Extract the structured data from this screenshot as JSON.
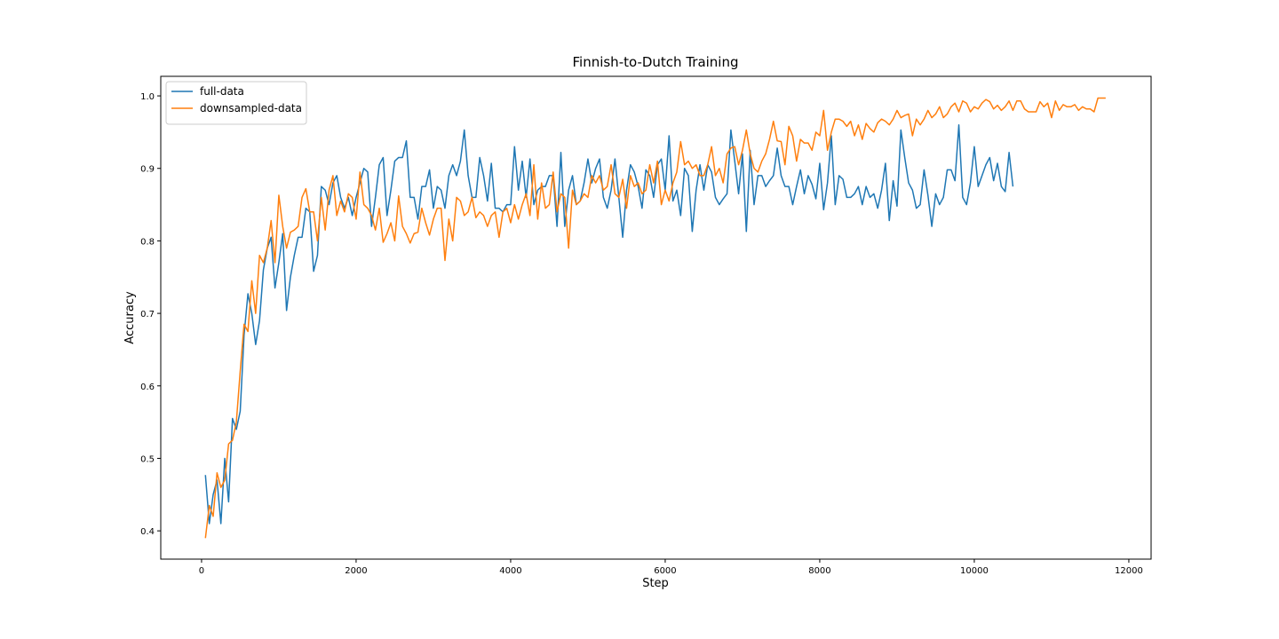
{
  "chart_data": {
    "type": "line",
    "title": "Finnish-to-Dutch Training",
    "x_label": "Step",
    "y_label": "Accuracy",
    "x": [
      50,
      100,
      150,
      200,
      250,
      300,
      350,
      400,
      450,
      500,
      550,
      600,
      650,
      700,
      750,
      800,
      850,
      900,
      950,
      1000,
      1050,
      1100,
      1150,
      1200,
      1250,
      1300,
      1350,
      1400,
      1450,
      1500,
      1550,
      1600,
      1650,
      1700,
      1750,
      1800,
      1850,
      1900,
      1950,
      2000,
      2050,
      2100,
      2150,
      2200,
      2250,
      2300,
      2350,
      2400,
      2450,
      2500,
      2550,
      2600,
      2650,
      2700,
      2750,
      2800,
      2850,
      2900,
      2950,
      3000,
      3050,
      3100,
      3150,
      3200,
      3250,
      3300,
      3350,
      3400,
      3450,
      3500,
      3550,
      3600,
      3650,
      3700,
      3750,
      3800,
      3850,
      3900,
      3950,
      4000,
      4050,
      4100,
      4150,
      4200,
      4250,
      4300,
      4350,
      4400,
      4450,
      4500,
      4550,
      4600,
      4650,
      4700,
      4750,
      4800,
      4850,
      4900,
      4950,
      5000,
      5050,
      5100,
      5150,
      5200,
      5250,
      5300,
      5350,
      5400,
      5450,
      5500,
      5550,
      5600,
      5650,
      5700,
      5750,
      5800,
      5850,
      5900,
      5950,
      6000,
      6050,
      6100,
      6150,
      6200,
      6250,
      6300,
      6350,
      6400,
      6450,
      6500,
      6550,
      6600,
      6650,
      6700,
      6750,
      6800,
      6850,
      6900,
      6950,
      7000,
      7050,
      7100,
      7150,
      7200,
      7250,
      7300,
      7350,
      7400,
      7450,
      7500,
      7550,
      7600,
      7650,
      7700,
      7750,
      7800,
      7850,
      7900,
      7950,
      8000,
      8050,
      8100,
      8150,
      8200,
      8250,
      8300,
      8350,
      8400,
      8450,
      8500,
      8550,
      8600,
      8650,
      8700,
      8750,
      8800,
      8850,
      8900,
      8950,
      9000,
      9050,
      9100,
      9150,
      9200,
      9250,
      9300,
      9350,
      9400,
      9450,
      9500,
      9550,
      9600,
      9650,
      9700,
      9750,
      9800,
      9850,
      9900,
      9950,
      10000,
      10050,
      10100,
      10150,
      10200,
      10250,
      10300,
      10350,
      10400,
      10450,
      10500,
      10550,
      10600,
      10650,
      10700,
      10750,
      10800,
      10850,
      10900,
      10950,
      11000,
      11050,
      11100,
      11150,
      11200,
      11250,
      11300,
      11350,
      11400,
      11450,
      11500,
      11550,
      11600,
      11650,
      11700
    ],
    "series": [
      {
        "name": "full-data",
        "color": "#1f77b4",
        "values": [
          0.477,
          0.41,
          0.45,
          0.47,
          0.41,
          0.5,
          0.44,
          0.555,
          0.54,
          0.565,
          0.67,
          0.727,
          0.7,
          0.657,
          0.69,
          0.76,
          0.79,
          0.805,
          0.735,
          0.77,
          0.81,
          0.704,
          0.75,
          0.78,
          0.805,
          0.805,
          0.845,
          0.84,
          0.758,
          0.78,
          0.875,
          0.87,
          0.85,
          0.88,
          0.89,
          0.86,
          0.845,
          0.86,
          0.835,
          0.86,
          0.88,
          0.9,
          0.895,
          0.82,
          0.86,
          0.905,
          0.915,
          0.835,
          0.87,
          0.91,
          0.915,
          0.915,
          0.938,
          0.86,
          0.86,
          0.83,
          0.875,
          0.875,
          0.898,
          0.845,
          0.875,
          0.87,
          0.845,
          0.89,
          0.905,
          0.89,
          0.91,
          0.953,
          0.89,
          0.86,
          0.86,
          0.915,
          0.89,
          0.855,
          0.907,
          0.845,
          0.845,
          0.84,
          0.85,
          0.85,
          0.93,
          0.87,
          0.91,
          0.86,
          0.913,
          0.85,
          0.87,
          0.875,
          0.875,
          0.89,
          0.89,
          0.82,
          0.922,
          0.82,
          0.87,
          0.89,
          0.85,
          0.855,
          0.88,
          0.913,
          0.88,
          0.9,
          0.913,
          0.86,
          0.845,
          0.87,
          0.913,
          0.86,
          0.805,
          0.87,
          0.905,
          0.895,
          0.875,
          0.845,
          0.898,
          0.89,
          0.86,
          0.905,
          0.913,
          0.87,
          0.945,
          0.855,
          0.87,
          0.835,
          0.9,
          0.89,
          0.813,
          0.87,
          0.905,
          0.87,
          0.905,
          0.895,
          0.86,
          0.85,
          0.858,
          0.865,
          0.953,
          0.91,
          0.865,
          0.92,
          0.813,
          0.925,
          0.85,
          0.89,
          0.89,
          0.875,
          0.883,
          0.89,
          0.928,
          0.89,
          0.875,
          0.875,
          0.85,
          0.875,
          0.898,
          0.865,
          0.89,
          0.878,
          0.858,
          0.907,
          0.843,
          0.88,
          0.945,
          0.85,
          0.89,
          0.885,
          0.86,
          0.86,
          0.865,
          0.875,
          0.85,
          0.875,
          0.86,
          0.865,
          0.845,
          0.87,
          0.907,
          0.828,
          0.883,
          0.848,
          0.953,
          0.915,
          0.88,
          0.87,
          0.845,
          0.85,
          0.898,
          0.863,
          0.82,
          0.865,
          0.85,
          0.86,
          0.898,
          0.898,
          0.883,
          0.96,
          0.86,
          0.85,
          0.88,
          0.93,
          0.875,
          0.89,
          0.905,
          0.915,
          0.883,
          0.907,
          0.875,
          0.868,
          0.922,
          0.875,
          null,
          null,
          null,
          null,
          null,
          null,
          null,
          null,
          null,
          null,
          null,
          null,
          null,
          null,
          null,
          null,
          null,
          null,
          null,
          null,
          null,
          null,
          null,
          null
        ]
      },
      {
        "name": "downsampled-data",
        "color": "#ff7f0e",
        "values": [
          0.39,
          0.435,
          0.42,
          0.48,
          0.46,
          0.47,
          0.52,
          0.525,
          0.55,
          0.62,
          0.685,
          0.675,
          0.745,
          0.7,
          0.78,
          0.77,
          0.79,
          0.828,
          0.77,
          0.863,
          0.82,
          0.79,
          0.812,
          0.815,
          0.82,
          0.86,
          0.872,
          0.84,
          0.84,
          0.8,
          0.86,
          0.815,
          0.87,
          0.89,
          0.835,
          0.855,
          0.84,
          0.865,
          0.86,
          0.83,
          0.895,
          0.85,
          0.845,
          0.835,
          0.815,
          0.845,
          0.798,
          0.81,
          0.825,
          0.8,
          0.862,
          0.82,
          0.81,
          0.797,
          0.81,
          0.812,
          0.845,
          0.825,
          0.808,
          0.83,
          0.845,
          0.845,
          0.773,
          0.83,
          0.8,
          0.86,
          0.855,
          0.835,
          0.84,
          0.86,
          0.832,
          0.84,
          0.835,
          0.82,
          0.835,
          0.84,
          0.805,
          0.84,
          0.845,
          0.825,
          0.85,
          0.83,
          0.85,
          0.865,
          0.835,
          0.905,
          0.83,
          0.88,
          0.845,
          0.85,
          0.895,
          0.84,
          0.865,
          0.86,
          0.79,
          0.87,
          0.85,
          0.855,
          0.865,
          0.86,
          0.89,
          0.88,
          0.89,
          0.87,
          0.875,
          0.905,
          0.865,
          0.86,
          0.885,
          0.845,
          0.89,
          0.875,
          0.88,
          0.865,
          0.87,
          0.905,
          0.88,
          0.91,
          0.85,
          0.87,
          0.855,
          0.88,
          0.895,
          0.937,
          0.905,
          0.91,
          0.9,
          0.905,
          0.89,
          0.89,
          0.905,
          0.93,
          0.89,
          0.9,
          0.88,
          0.92,
          0.928,
          0.93,
          0.905,
          0.925,
          0.953,
          0.92,
          0.9,
          0.895,
          0.91,
          0.92,
          0.94,
          0.965,
          0.938,
          0.937,
          0.905,
          0.958,
          0.945,
          0.91,
          0.94,
          0.935,
          0.935,
          0.925,
          0.95,
          0.945,
          0.98,
          0.925,
          0.95,
          0.968,
          0.968,
          0.965,
          0.958,
          0.965,
          0.945,
          0.96,
          0.94,
          0.962,
          0.955,
          0.95,
          0.963,
          0.968,
          0.965,
          0.96,
          0.968,
          0.98,
          0.97,
          0.973,
          0.975,
          0.945,
          0.968,
          0.96,
          0.968,
          0.98,
          0.97,
          0.975,
          0.985,
          0.97,
          0.975,
          0.985,
          0.99,
          0.978,
          0.993,
          0.99,
          0.978,
          0.985,
          0.982,
          0.99,
          0.995,
          0.992,
          0.982,
          0.987,
          0.98,
          0.985,
          0.993,
          0.98,
          0.993,
          0.993,
          0.982,
          0.978,
          0.978,
          0.978,
          0.992,
          0.985,
          0.99,
          0.97,
          0.993,
          0.98,
          0.988,
          0.985,
          0.985,
          0.988,
          0.98,
          0.985,
          0.982,
          0.982,
          0.978,
          0.997,
          0.997,
          0.997
        ]
      }
    ],
    "xlim": [
      -528,
      12288
    ],
    "ylim": [
      0.361,
      1.027
    ],
    "xticks": [
      0,
      2000,
      4000,
      6000,
      8000,
      10000,
      12000
    ],
    "yticks": [
      0.4,
      0.5,
      0.6,
      0.7,
      0.8,
      0.9,
      {
        "value": 1,
        "label": "1.0"
      }
    ],
    "grid": false,
    "legend": "upper left"
  }
}
